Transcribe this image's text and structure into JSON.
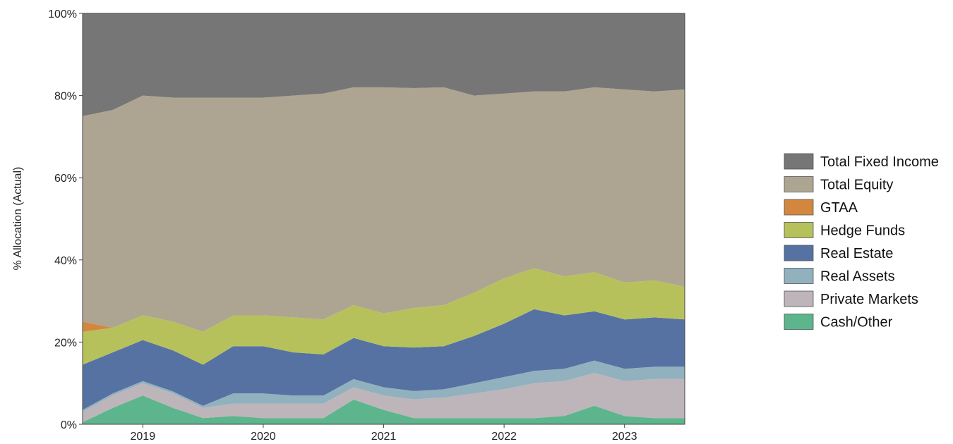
{
  "chart_data": {
    "type": "area",
    "stacked": true,
    "stack_mode": "percent",
    "ylabel": "% Allocation (Actual)",
    "xlabel": "",
    "ylim": [
      0,
      100
    ],
    "y_ticks": [
      "0%",
      "20%",
      "40%",
      "60%",
      "80%",
      "100%"
    ],
    "x_ticks": [
      {
        "label": "2019",
        "value": 2019.0
      },
      {
        "label": "2020",
        "value": 2020.0
      },
      {
        "label": "2021",
        "value": 2021.0
      },
      {
        "label": "2022",
        "value": 2022.0
      },
      {
        "label": "2023",
        "value": 2023.0
      }
    ],
    "xlim": [
      2018.5,
      2023.5
    ],
    "grid": false,
    "legend_position": "right",
    "x": [
      2018.5,
      2018.75,
      2019.0,
      2019.25,
      2019.5,
      2019.75,
      2020.0,
      2020.25,
      2020.5,
      2020.75,
      2021.0,
      2021.25,
      2021.5,
      2021.75,
      2022.0,
      2022.25,
      2022.5,
      2022.75,
      2023.0,
      2023.25,
      2023.5
    ],
    "series": [
      {
        "name": "Cash/Other",
        "color": "#5cb58c",
        "values": [
          0.5,
          4.0,
          7.0,
          4.0,
          1.5,
          2.0,
          1.5,
          1.5,
          1.5,
          6.0,
          3.5,
          1.5,
          1.5,
          1.5,
          1.5,
          1.5,
          2.0,
          4.5,
          2.0,
          1.5,
          1.5
        ]
      },
      {
        "name": "Private Markets",
        "color": "#bdb5ba",
        "values": [
          2.5,
          3.0,
          3.0,
          3.5,
          2.5,
          3.0,
          3.5,
          3.5,
          3.5,
          3.0,
          3.5,
          4.5,
          5.0,
          6.0,
          7.0,
          8.5,
          8.5,
          8.0,
          8.5,
          9.5,
          9.5
        ]
      },
      {
        "name": "Real Assets",
        "color": "#92b1be",
        "values": [
          0.5,
          0.5,
          0.5,
          0.5,
          0.5,
          2.5,
          2.5,
          2.0,
          2.0,
          2.0,
          2.0,
          2.0,
          2.0,
          2.5,
          3.0,
          3.0,
          3.0,
          3.0,
          3.0,
          3.0,
          3.0
        ]
      },
      {
        "name": "Real Estate",
        "color": "#5672a3",
        "values": [
          11.0,
          10.0,
          10.0,
          10.0,
          10.0,
          11.5,
          11.5,
          10.5,
          10.0,
          10.0,
          10.0,
          10.5,
          10.5,
          11.5,
          13.0,
          15.0,
          13.0,
          12.0,
          12.0,
          12.0,
          11.5
        ]
      },
      {
        "name": "Hedge Funds",
        "color": "#b7c15b",
        "values": [
          8.0,
          6.0,
          6.0,
          7.0,
          8.0,
          7.5,
          7.5,
          8.5,
          8.5,
          8.0,
          8.0,
          9.5,
          10.0,
          10.5,
          11.0,
          10.0,
          9.5,
          9.5,
          9.0,
          9.0,
          8.0
        ]
      },
      {
        "name": "GTAA",
        "color": "#d3873e",
        "values": [
          2.5,
          0,
          0,
          0,
          0,
          0,
          0,
          0,
          0,
          0,
          0,
          0,
          0,
          0,
          0,
          0,
          0,
          0,
          0,
          0,
          0
        ]
      },
      {
        "name": "Total Equity",
        "color": "#ada592",
        "values": [
          50.0,
          53.0,
          53.5,
          54.5,
          57.0,
          53.0,
          53.0,
          54.0,
          55.0,
          53.0,
          55.0,
          53.0,
          53.0,
          48.0,
          45.0,
          43.0,
          45.0,
          45.0,
          47.0,
          46.0,
          48.0
        ]
      },
      {
        "name": "Total Fixed Income",
        "color": "#767676",
        "values": [
          25.0,
          23.5,
          20.0,
          20.5,
          20.5,
          20.5,
          20.5,
          20.0,
          19.5,
          18.0,
          18.0,
          18.0,
          18.0,
          20.0,
          19.5,
          19.0,
          19.0,
          18.0,
          18.5,
          19.0,
          18.5
        ]
      }
    ],
    "legend_order": [
      "Total Fixed Income",
      "Total Equity",
      "GTAA",
      "Hedge Funds",
      "Real Estate",
      "Real Assets",
      "Private Markets",
      "Cash/Other"
    ]
  }
}
